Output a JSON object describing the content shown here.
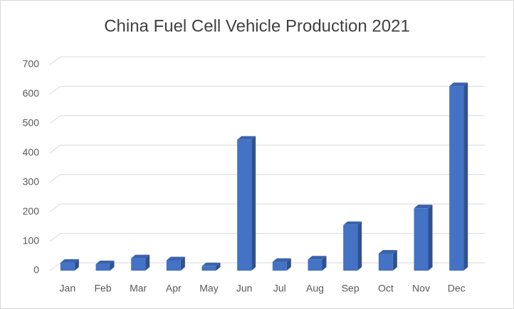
{
  "chart_data": {
    "type": "bar3d",
    "title": "China Fuel Cell Vehicle Production 2021",
    "categories": [
      "Jan",
      "Feb",
      "Mar",
      "Apr",
      "May",
      "Jun",
      "Jul",
      "Aug",
      "Sep",
      "Oct",
      "Nov",
      "Dec"
    ],
    "values": [
      27,
      22,
      42,
      35,
      15,
      445,
      30,
      38,
      155,
      58,
      212,
      627
    ],
    "color": "#4472c4",
    "ylim": [
      0,
      700
    ],
    "yticks": [
      0,
      100,
      200,
      300,
      400,
      500,
      600,
      700
    ],
    "grid": true
  }
}
